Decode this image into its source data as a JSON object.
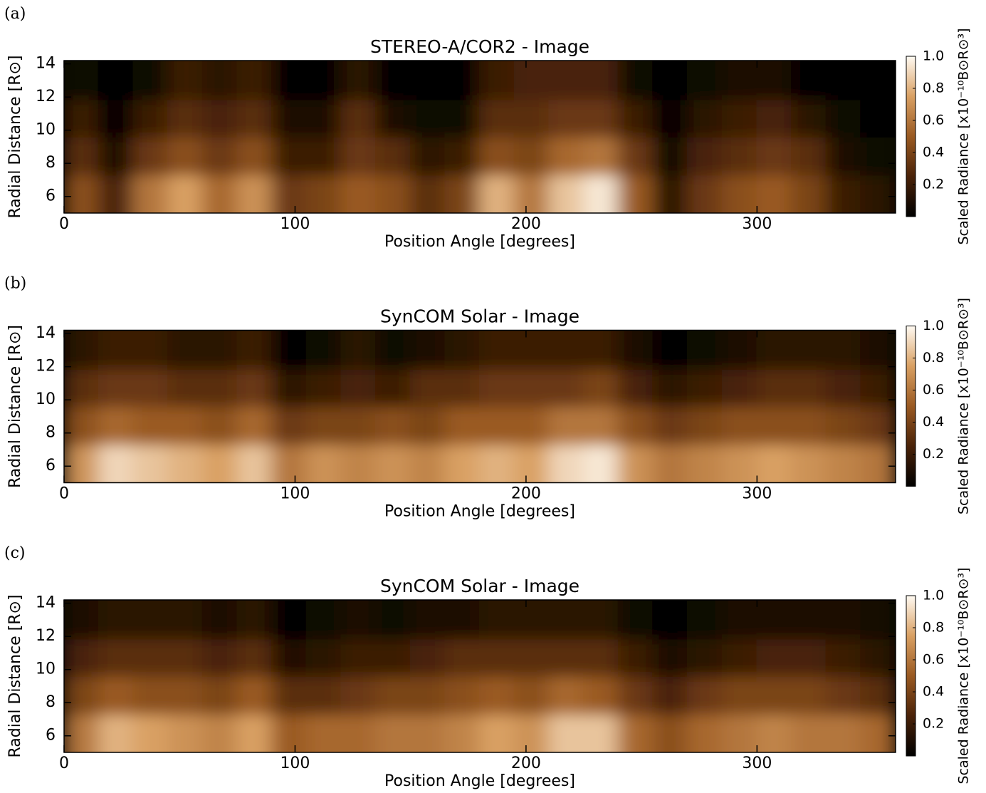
{
  "chart_data": [
    {
      "type": "heatmap",
      "panel_label": "(a)",
      "title": "STEREO-A/COR2 - Image",
      "xlabel": "Position Angle [degrees]",
      "ylabel": "Radial Distance [R⊙]",
      "colorbar_label": "Scaled Radiance [x10⁻¹⁰B⊙R⊙³]",
      "xlim": [
        0,
        360
      ],
      "xticks": [
        0,
        100,
        200,
        300
      ],
      "ylim": [
        5,
        14.2
      ],
      "yticks": [
        6,
        8,
        10,
        12,
        14
      ],
      "clim": [
        0,
        1
      ],
      "cticks": [
        0.2,
        0.4,
        0.6,
        0.8,
        {
          "value": 1,
          "label": "1.0"
        }
      ],
      "colormap": [
        "#000000",
        "#4a2208",
        "#9a5a22",
        "#d9a063",
        "#fffaf2"
      ],
      "z": [
        [
          0.45,
          0.25,
          0.6,
          0.75,
          0.55,
          0.7,
          0.35,
          0.4,
          0.5,
          0.45,
          0.3,
          0.4,
          0.8,
          0.6,
          0.85,
          0.95,
          0.5,
          0.15,
          0.35,
          0.45,
          0.5,
          0.4,
          0.2,
          0.15
        ],
        [
          0.3,
          0.1,
          0.35,
          0.45,
          0.35,
          0.45,
          0.2,
          0.2,
          0.35,
          0.3,
          0.15,
          0.2,
          0.45,
          0.4,
          0.55,
          0.6,
          0.35,
          0.05,
          0.25,
          0.3,
          0.35,
          0.3,
          0.1,
          0.05
        ],
        [
          0.2,
          0.02,
          0.2,
          0.3,
          0.25,
          0.3,
          0.1,
          0.1,
          0.3,
          0.1,
          0.05,
          0.05,
          0.3,
          0.3,
          0.35,
          0.35,
          0.2,
          0,
          0.15,
          0.2,
          0.25,
          0.15,
          0.05,
          0.02
        ],
        [
          0.05,
          0,
          0.05,
          0.2,
          0.15,
          0.2,
          0.02,
          0.02,
          0.15,
          0,
          0,
          0,
          0.2,
          0.25,
          0.25,
          0.25,
          0.05,
          0,
          0.05,
          0.1,
          0.1,
          0.02,
          0,
          0
        ]
      ]
    },
    {
      "type": "heatmap",
      "panel_label": "(b)",
      "title": "SynCOM Solar - Image",
      "xlabel": "Position Angle [degrees]",
      "ylabel": "Radial Distance [R⊙]",
      "colorbar_label": "Scaled Radiance [x10⁻¹⁰B⊙R⊙³]",
      "xlim": [
        0,
        360
      ],
      "xticks": [
        0,
        100,
        200,
        300
      ],
      "ylim": [
        5,
        14.2
      ],
      "yticks": [
        6,
        8,
        10,
        12,
        14
      ],
      "clim": [
        0,
        1
      ],
      "cticks": [
        0.2,
        0.4,
        0.6,
        0.8,
        {
          "value": 1,
          "label": "1.0"
        }
      ],
      "colormap": [
        "#000000",
        "#4a2208",
        "#9a5a22",
        "#d9a063",
        "#fffaf2"
      ],
      "z": [
        [
          0.7,
          0.9,
          0.85,
          0.8,
          0.75,
          0.85,
          0.6,
          0.7,
          0.65,
          0.7,
          0.65,
          0.75,
          0.8,
          0.75,
          0.9,
          0.95,
          0.7,
          0.6,
          0.65,
          0.7,
          0.75,
          0.7,
          0.65,
          0.6
        ],
        [
          0.45,
          0.55,
          0.5,
          0.5,
          0.45,
          0.55,
          0.35,
          0.4,
          0.4,
          0.45,
          0.4,
          0.5,
          0.5,
          0.5,
          0.6,
          0.6,
          0.45,
          0.35,
          0.4,
          0.45,
          0.45,
          0.45,
          0.4,
          0.35
        ],
        [
          0.3,
          0.35,
          0.35,
          0.3,
          0.3,
          0.35,
          0.15,
          0.2,
          0.25,
          0.2,
          0.3,
          0.3,
          0.35,
          0.35,
          0.35,
          0.4,
          0.25,
          0.15,
          0.2,
          0.25,
          0.3,
          0.3,
          0.25,
          0.2
        ],
        [
          0.15,
          0.2,
          0.2,
          0.15,
          0.15,
          0.2,
          0.02,
          0.05,
          0.15,
          0.05,
          0.1,
          0.15,
          0.2,
          0.2,
          0.2,
          0.2,
          0.1,
          0.02,
          0.05,
          0.1,
          0.15,
          0.15,
          0.15,
          0.1
        ]
      ]
    },
    {
      "type": "heatmap",
      "panel_label": "(c)",
      "title": "SynCOM Solar - Image",
      "xlabel": "Position Angle [degrees]",
      "ylabel": "Radial Distance [R⊙]",
      "colorbar_label": "Scaled Radiance [x10⁻¹⁰B⊙R⊙³]",
      "xlim": [
        0,
        360
      ],
      "xticks": [
        0,
        100,
        200,
        300
      ],
      "ylim": [
        5,
        14.2
      ],
      "yticks": [
        6,
        8,
        10,
        12,
        14
      ],
      "clim": [
        0,
        1
      ],
      "cticks": [
        0.2,
        0.4,
        0.6,
        0.8,
        {
          "value": 1,
          "label": "1.0"
        }
      ],
      "colormap": [
        "#000000",
        "#4a2208",
        "#9a5a22",
        "#d9a063",
        "#fffaf2"
      ],
      "z": [
        [
          0.6,
          0.8,
          0.75,
          0.7,
          0.65,
          0.75,
          0.5,
          0.55,
          0.55,
          0.6,
          0.6,
          0.65,
          0.75,
          0.7,
          0.85,
          0.85,
          0.55,
          0.45,
          0.55,
          0.6,
          0.65,
          0.6,
          0.6,
          0.55
        ],
        [
          0.4,
          0.5,
          0.45,
          0.45,
          0.4,
          0.5,
          0.3,
          0.3,
          0.35,
          0.4,
          0.4,
          0.45,
          0.5,
          0.45,
          0.55,
          0.5,
          0.35,
          0.25,
          0.35,
          0.4,
          0.4,
          0.4,
          0.35,
          0.3
        ],
        [
          0.25,
          0.3,
          0.3,
          0.3,
          0.25,
          0.3,
          0.12,
          0.15,
          0.2,
          0.2,
          0.25,
          0.3,
          0.3,
          0.3,
          0.3,
          0.3,
          0.2,
          0.1,
          0.15,
          0.2,
          0.25,
          0.25,
          0.2,
          0.15
        ],
        [
          0.1,
          0.15,
          0.15,
          0.15,
          0.1,
          0.15,
          0.02,
          0.05,
          0.1,
          0.05,
          0.1,
          0.1,
          0.15,
          0.15,
          0.15,
          0.15,
          0.05,
          0.02,
          0.05,
          0.1,
          0.1,
          0.1,
          0.1,
          0.08
        ]
      ]
    }
  ]
}
